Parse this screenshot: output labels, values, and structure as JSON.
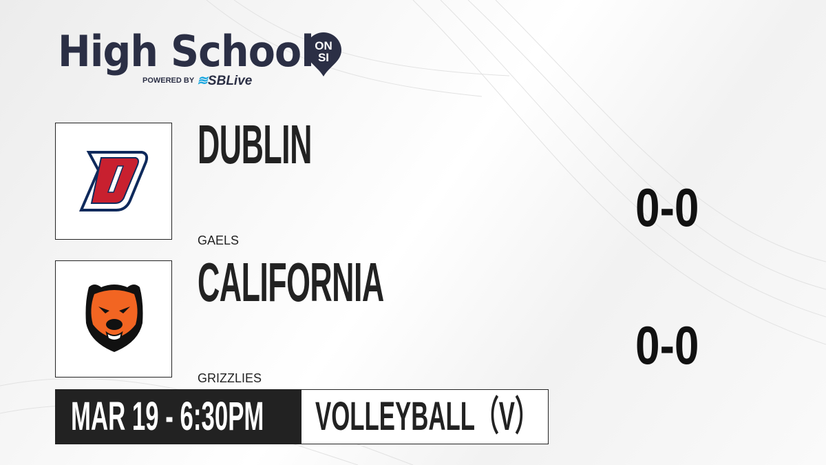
{
  "brand": {
    "title": "High School",
    "badge_top": "ON",
    "badge_bottom": "SI",
    "powered_by": "POWERED BY",
    "partner": "SBLive",
    "colors": {
      "navy": "#2b2f45",
      "accent": "#1aa7e0"
    }
  },
  "teams": [
    {
      "name": "DUBLIN",
      "mascot": "GAELS",
      "score": "0-0",
      "logo": "dublin-d-logo",
      "colors": {
        "primary": "#c8202f",
        "outline": "#0f2a5c"
      }
    },
    {
      "name": "CALIFORNIA",
      "mascot": "GRIZZLIES",
      "score": "0-0",
      "logo": "grizzly-bear-logo",
      "colors": {
        "primary": "#f26522",
        "secondary": "#111111"
      }
    }
  ],
  "game": {
    "datetime": "MAR 19 - 6:30PM",
    "sport": "VOLLEYBALL（V）"
  }
}
